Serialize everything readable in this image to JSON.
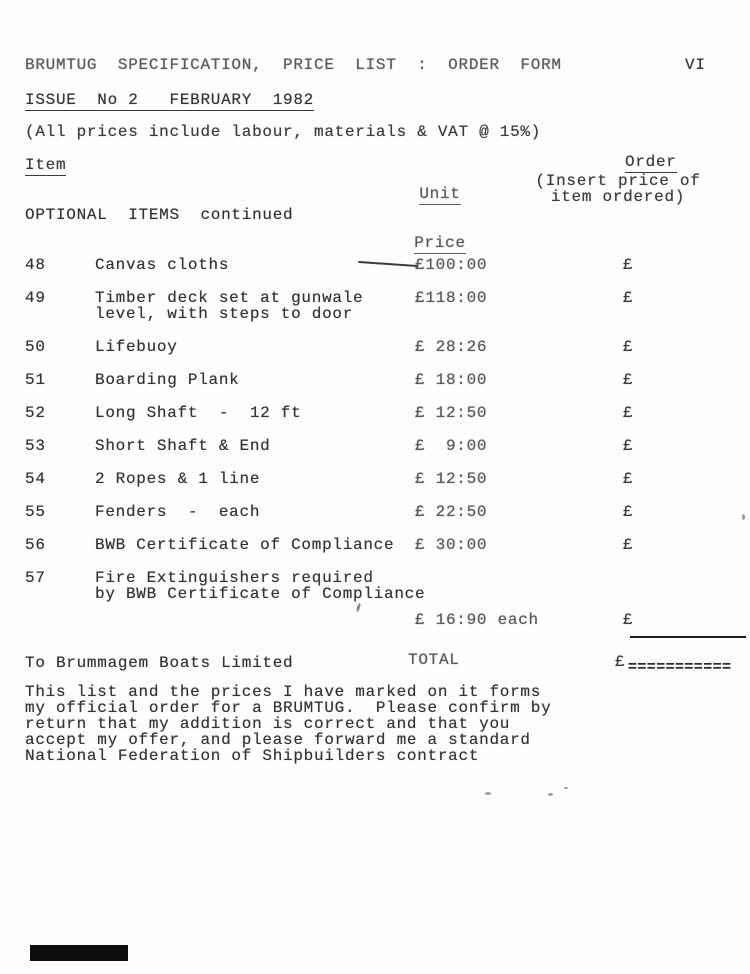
{
  "page": {
    "title_line": "BRUMTUG  SPECIFICATION,  PRICE  LIST  :  ORDER  FORM",
    "page_number": "VI",
    "issue_line": "ISSUE  No 2   FEBRUARY  1982",
    "note_line": "(All prices include labour, materials & VAT @ 15%)"
  },
  "columns": {
    "item": "Item",
    "unit_line1": "Unit",
    "unit_line2": "Price",
    "order": "Order",
    "order_note": "(Insert price of\nitem ordered)"
  },
  "section_heading": "OPTIONAL  ITEMS  continued",
  "items": [
    {
      "num": "48",
      "desc": "Canvas cloths",
      "price": "£100:00",
      "order": "£",
      "dash": true
    },
    {
      "num": "49",
      "desc": "Timber deck set at gunwale\nlevel, with steps to door",
      "price": "£118:00",
      "order": "£"
    },
    {
      "num": "50",
      "desc": "Lifebuoy",
      "price": "£ 28:26",
      "order": "£"
    },
    {
      "num": "51",
      "desc": "Boarding Plank",
      "price": "£ 18:00",
      "order": "£"
    },
    {
      "num": "52",
      "desc": "Long Shaft  -  12 ft",
      "price": "£ 12:50",
      "order": "£"
    },
    {
      "num": "53",
      "desc": "Short Shaft & End",
      "price": "£  9:00",
      "order": "£"
    },
    {
      "num": "54",
      "desc": "2 Ropes & 1 line",
      "price": "£ 12:50",
      "order": "£"
    },
    {
      "num": "55",
      "desc": "Fenders  -  each",
      "price": "£ 22:50",
      "order": "£"
    },
    {
      "num": "56",
      "desc": "BWB Certificate of Compliance",
      "price": "£ 30:00",
      "order": "£"
    },
    {
      "num": "57",
      "desc": "Fire Extinguishers required\nby BWB Certificate of Compliance",
      "price": "£ 16:90 each",
      "order": "£",
      "special": true
    }
  ],
  "total": {
    "addressee": "To Brummagem Boats Limited",
    "label": "TOTAL",
    "currency": "£",
    "rule": "==========="
  },
  "footer_paragraph": "This list and the prices I have marked on it forms\nmy official order for a BRUMTUG.  Please confirm by\nreturn that my addition is correct and that you\naccept my offer, and please forward me a standard\nNational Federation of Shipbuilders contract"
}
